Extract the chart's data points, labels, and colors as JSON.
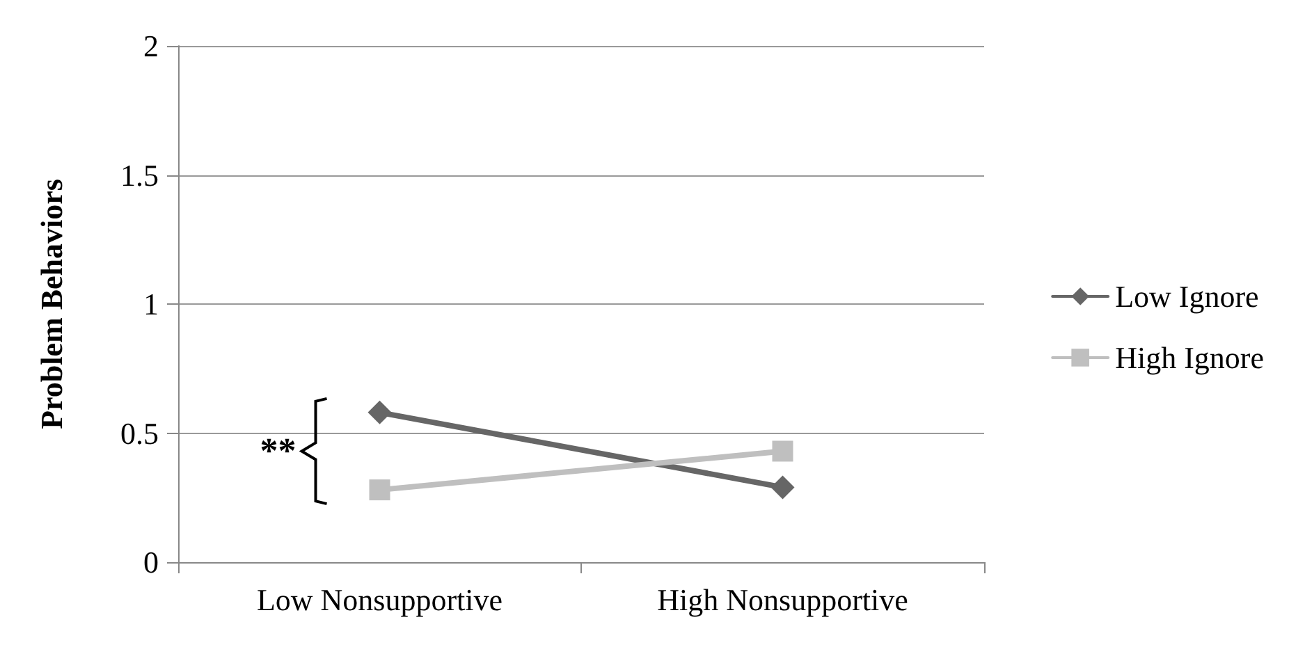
{
  "chart_data": {
    "type": "line",
    "ylabel": "Problem Behaviors",
    "categories": [
      "Low Nonsupportive",
      "High Nonsupportive"
    ],
    "series": [
      {
        "name": "Low Ignore",
        "color": "#666666",
        "marker": "diamond",
        "values": [
          0.58,
          0.29
        ]
      },
      {
        "name": "High Ignore",
        "color": "#bfbfbf",
        "marker": "square",
        "values": [
          0.28,
          0.43
        ]
      }
    ],
    "ylim": [
      0,
      2
    ],
    "yticks": [
      0,
      0.5,
      1,
      1.5,
      2
    ],
    "grid": "y",
    "legend": "right",
    "line_style": "solid",
    "annotations": [
      "**"
    ]
  }
}
